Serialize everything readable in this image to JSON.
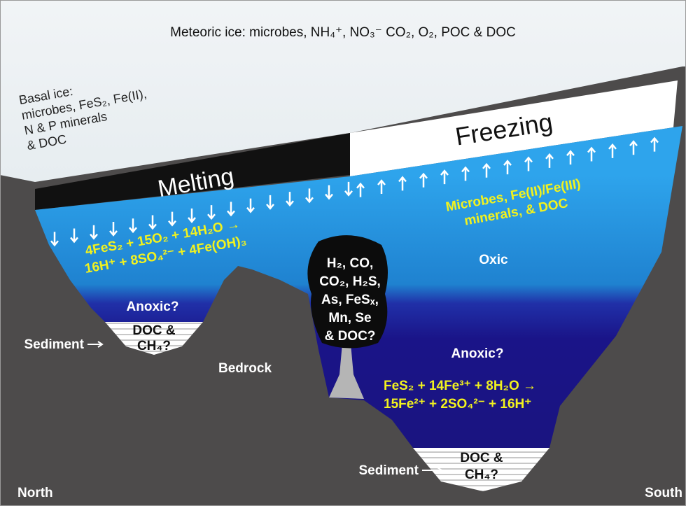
{
  "title": "Meteoric ice: microbes, NH₄⁺, NO₃⁻ CO₂, O₂, POC & DOC",
  "basal_ice": [
    "Basal ice:",
    "microbes, FeS₂, Fe(II),",
    "N & P minerals",
    "& DOC"
  ],
  "melting": "Melting",
  "freezing": "Freezing",
  "reaction_oxic": [
    "4FeS₂ + 15O₂ + 14H₂O →",
    "16H⁺ + 8SO₄²⁻ + 4Fe(OH)₃"
  ],
  "freezing_note": [
    "Microbes, Fe(II)/Fe(III)",
    "minerals, & DOC"
  ],
  "oxic": "Oxic",
  "anoxic_left": "Anoxic?",
  "anoxic_right": "Anoxic?",
  "plume": [
    "H₂, CO,",
    "CO₂, H₂S,",
    "As, FeSₓ,",
    "Mn, Se",
    "& DOC?"
  ],
  "reaction_anoxic": [
    "FeS₂ + 14Fe³⁺ + 8H₂O →",
    "15Fe²⁺ + 2SO₄²⁻ + 16H⁺"
  ],
  "sediment_left": {
    "label": "Sediment",
    "content": [
      "DOC &",
      "CH₄?"
    ]
  },
  "sediment_right": {
    "label": "Sediment",
    "content": [
      "DOC &",
      "CH₄?"
    ]
  },
  "bedrock": "Bedrock",
  "north": "North",
  "south": "South"
}
